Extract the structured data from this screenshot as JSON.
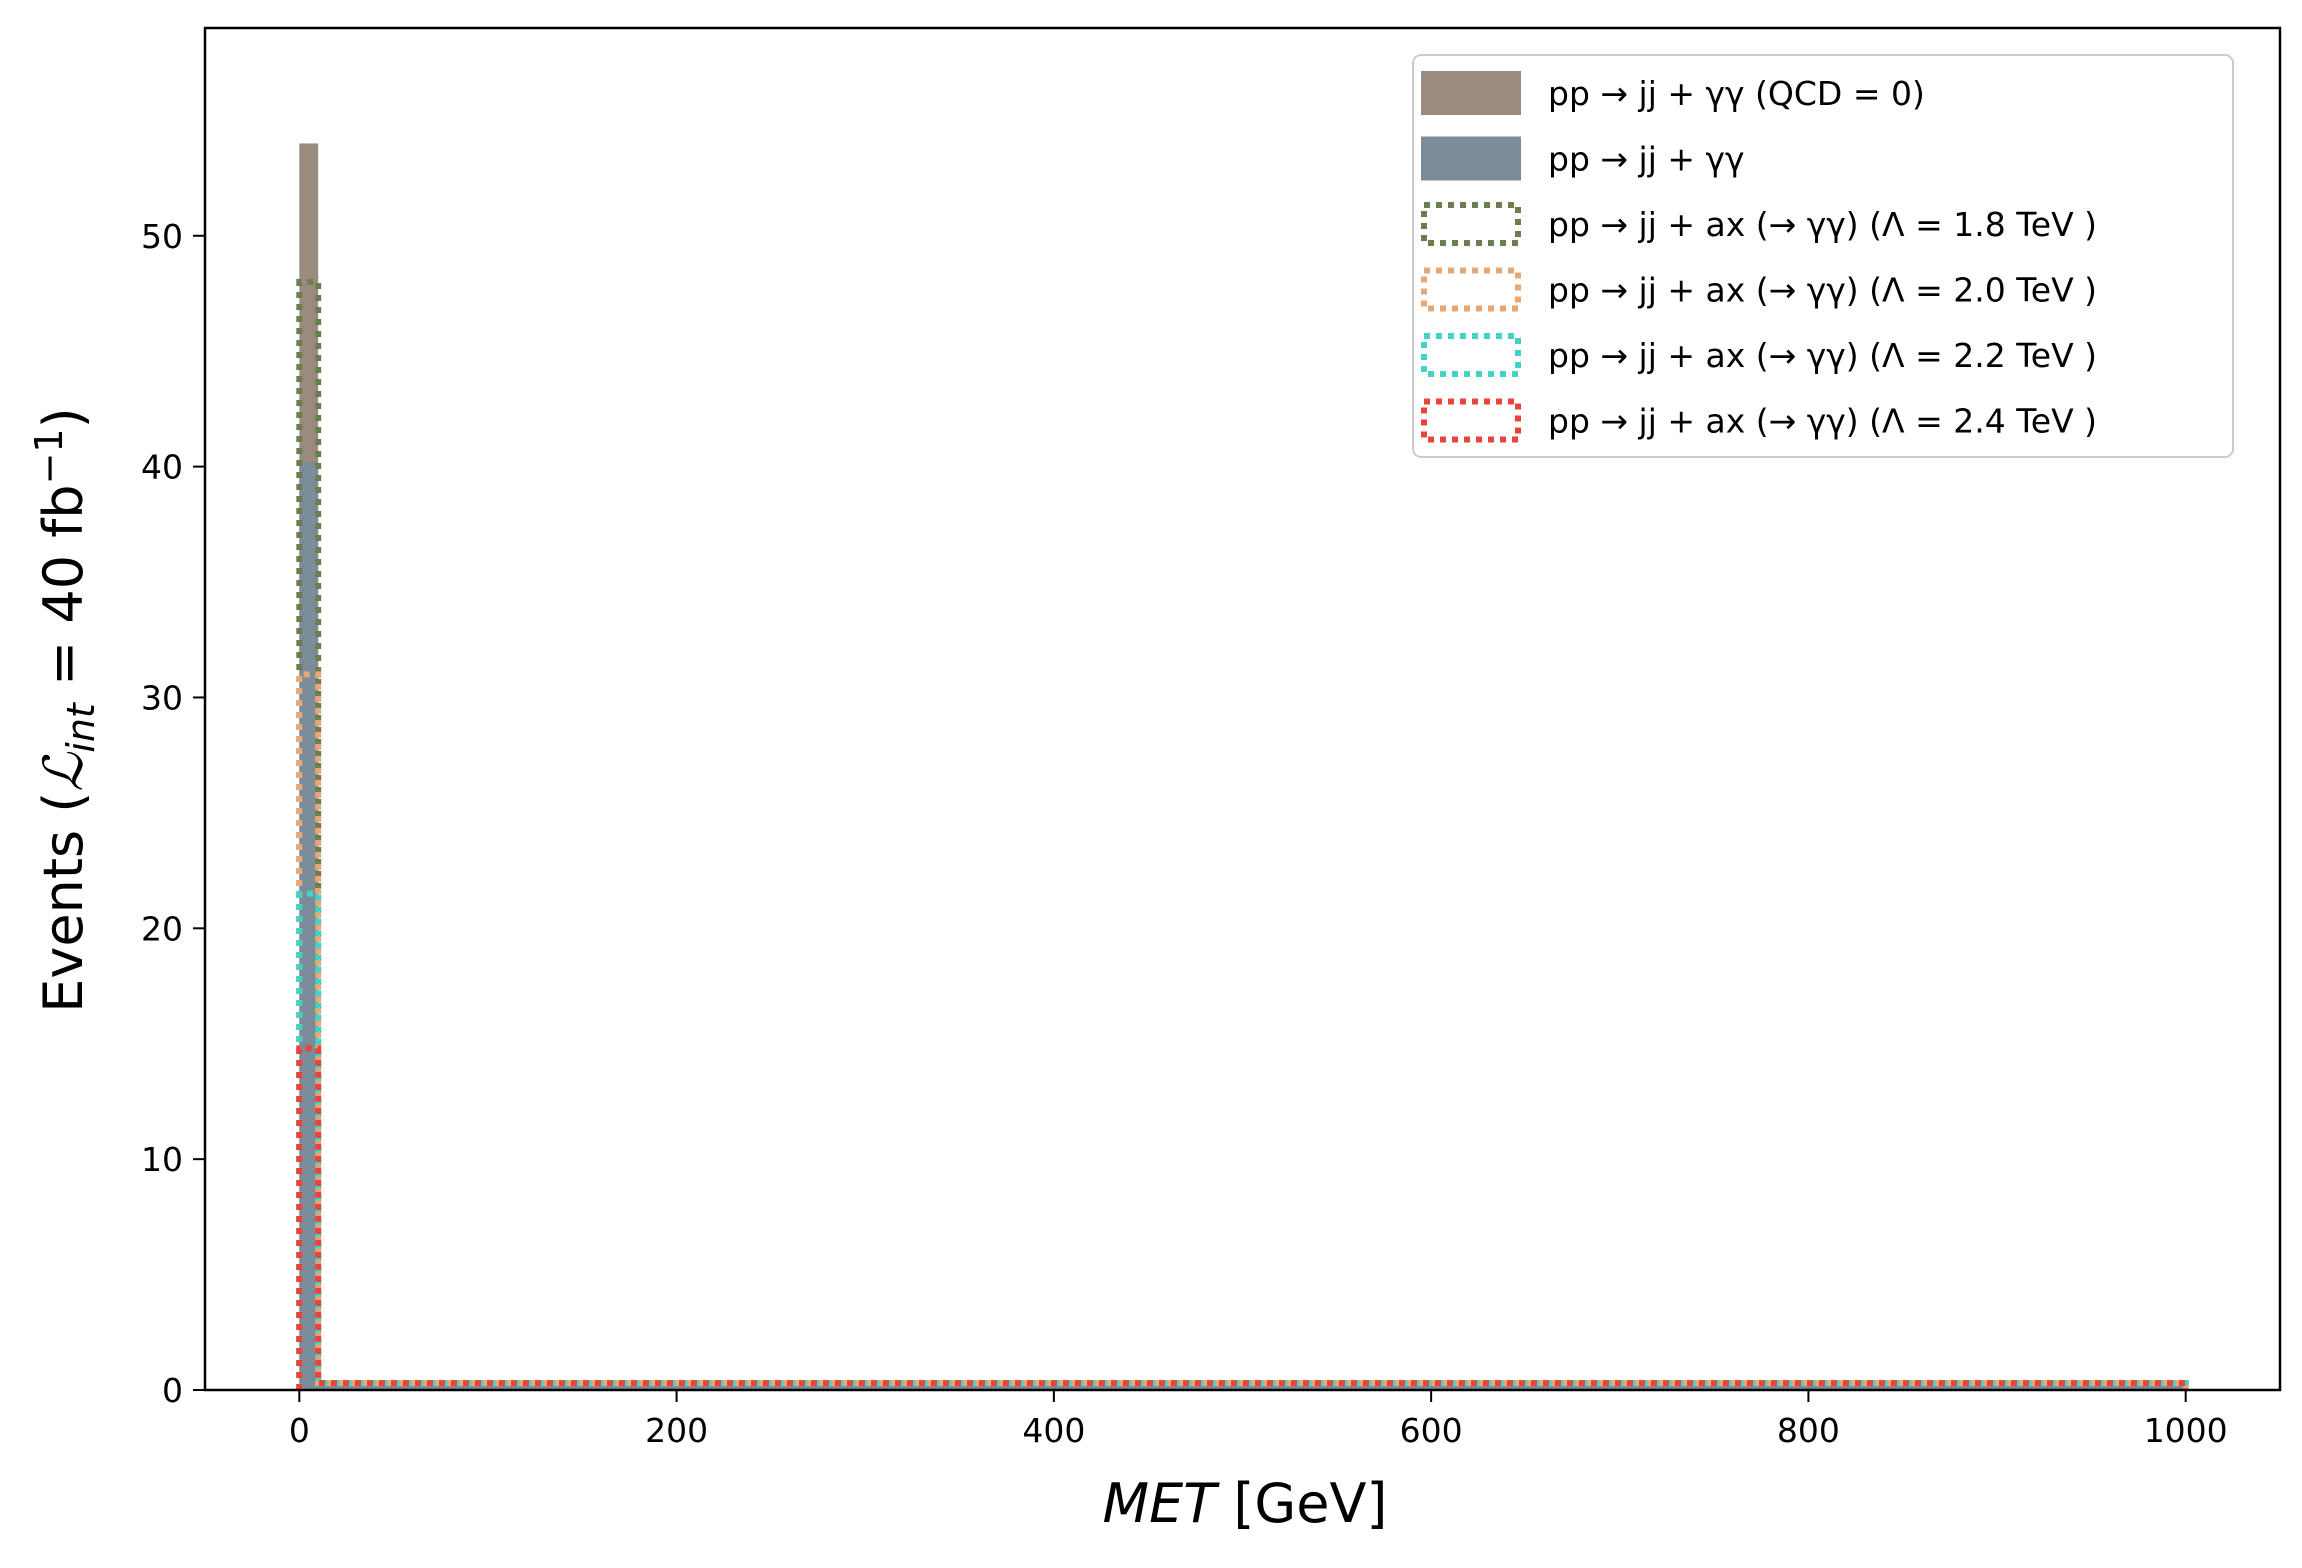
{
  "chart_data": {
    "type": "histogram",
    "xlabel_var": "MET",
    "xlabel_unit": "[GeV]",
    "ylabel_prefix": "Events (",
    "ylabel_L": "ℒ",
    "ylabel_sub": "int",
    "ylabel_eq": " = 40 fb",
    "ylabel_sup": "−1",
    "ylabel_suffix": ")",
    "xlim": [
      -50,
      1050
    ],
    "ylim": [
      0,
      59
    ],
    "xticks": [
      0,
      200,
      400,
      600,
      800,
      1000
    ],
    "yticks": [
      0,
      10,
      20,
      30,
      40,
      50
    ],
    "bin_edges": [
      0,
      10,
      1000
    ],
    "grid": false,
    "legend_position": "upper right",
    "series": [
      {
        "name": "pp → jj + γγ (QCD = 0)",
        "style": "filled",
        "color": "#9b8b7e",
        "values": [
          54.0,
          0.3
        ]
      },
      {
        "name": "pp → jj + γγ",
        "style": "filled",
        "color": "#7a8c99",
        "values": [
          40.2,
          0.3
        ]
      },
      {
        "name": "pp → jj + ax (→ γγ) (Λ = 1.8 TeV )",
        "style": "dotted-step",
        "color": "#6b7e4e",
        "values": [
          48.0,
          0.3
        ]
      },
      {
        "name": "pp → jj + ax (→ γγ) (Λ = 2.0 TeV )",
        "style": "dotted-step",
        "color": "#e7a877",
        "values": [
          31.0,
          0.3
        ]
      },
      {
        "name": "pp → jj + ax (→ γγ) (Λ = 2.2 TeV )",
        "style": "dotted-step",
        "color": "#45d1c3",
        "values": [
          21.5,
          0.3
        ]
      },
      {
        "name": "pp → jj + ax (→ γγ) (Λ = 2.4 TeV )",
        "style": "dotted-step",
        "color": "#e8443a",
        "values": [
          14.8,
          0.3
        ]
      }
    ]
  }
}
